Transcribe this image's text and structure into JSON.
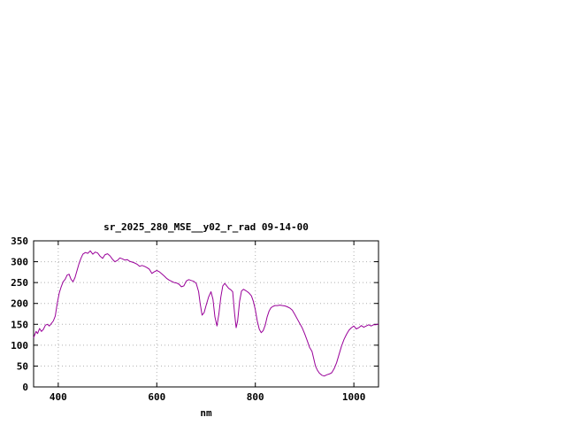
{
  "page": {
    "background": "#ffffff"
  },
  "chart_data": {
    "type": "line",
    "title": "sr_2025_280_MSE__y02_r_rad 09-14-00",
    "xlabel": "nm",
    "ylabel": "",
    "xlim": [
      350,
      1050
    ],
    "ylim": [
      0,
      350
    ],
    "x_ticks": [
      400,
      600,
      800,
      1000
    ],
    "y_ticks": [
      0,
      50,
      100,
      150,
      200,
      250,
      300,
      350
    ],
    "grid": true,
    "legend": "none",
    "line_color": "#990099",
    "grid_color": "#b0b0b0",
    "series": [
      {
        "name": "sr_2025_280_MSE__y02_r_rad",
        "points": [
          [
            350,
            118
          ],
          [
            355,
            133
          ],
          [
            358,
            128
          ],
          [
            362,
            140
          ],
          [
            366,
            133
          ],
          [
            370,
            138
          ],
          [
            374,
            148
          ],
          [
            378,
            150
          ],
          [
            382,
            146
          ],
          [
            386,
            152
          ],
          [
            390,
            158
          ],
          [
            394,
            170
          ],
          [
            398,
            200
          ],
          [
            402,
            225
          ],
          [
            406,
            240
          ],
          [
            410,
            252
          ],
          [
            414,
            258
          ],
          [
            418,
            268
          ],
          [
            422,
            270
          ],
          [
            426,
            258
          ],
          [
            430,
            252
          ],
          [
            434,
            262
          ],
          [
            438,
            278
          ],
          [
            442,
            295
          ],
          [
            446,
            308
          ],
          [
            450,
            318
          ],
          [
            455,
            322
          ],
          [
            460,
            320
          ],
          [
            465,
            326
          ],
          [
            470,
            318
          ],
          [
            475,
            323
          ],
          [
            480,
            321
          ],
          [
            485,
            313
          ],
          [
            490,
            308
          ],
          [
            495,
            317
          ],
          [
            500,
            319
          ],
          [
            505,
            314
          ],
          [
            510,
            306
          ],
          [
            515,
            300
          ],
          [
            520,
            303
          ],
          [
            525,
            309
          ],
          [
            530,
            307
          ],
          [
            535,
            304
          ],
          [
            540,
            305
          ],
          [
            545,
            301
          ],
          [
            550,
            299
          ],
          [
            555,
            297
          ],
          [
            560,
            294
          ],
          [
            565,
            289
          ],
          [
            570,
            291
          ],
          [
            575,
            289
          ],
          [
            580,
            286
          ],
          [
            585,
            282
          ],
          [
            590,
            272
          ],
          [
            595,
            276
          ],
          [
            600,
            279
          ],
          [
            605,
            276
          ],
          [
            610,
            271
          ],
          [
            615,
            266
          ],
          [
            620,
            260
          ],
          [
            625,
            256
          ],
          [
            630,
            253
          ],
          [
            635,
            250
          ],
          [
            640,
            249
          ],
          [
            645,
            246
          ],
          [
            650,
            240
          ],
          [
            655,
            242
          ],
          [
            660,
            254
          ],
          [
            665,
            257
          ],
          [
            670,
            255
          ],
          [
            675,
            253
          ],
          [
            680,
            248
          ],
          [
            685,
            228
          ],
          [
            688,
            200
          ],
          [
            692,
            172
          ],
          [
            696,
            178
          ],
          [
            700,
            195
          ],
          [
            705,
            215
          ],
          [
            710,
            228
          ],
          [
            714,
            210
          ],
          [
            718,
            168
          ],
          [
            722,
            146
          ],
          [
            726,
            175
          ],
          [
            730,
            215
          ],
          [
            734,
            242
          ],
          [
            738,
            248
          ],
          [
            742,
            242
          ],
          [
            746,
            236
          ],
          [
            750,
            233
          ],
          [
            754,
            228
          ],
          [
            758,
            175
          ],
          [
            761,
            142
          ],
          [
            764,
            158
          ],
          [
            768,
            205
          ],
          [
            772,
            230
          ],
          [
            776,
            234
          ],
          [
            780,
            231
          ],
          [
            784,
            228
          ],
          [
            788,
            224
          ],
          [
            792,
            218
          ],
          [
            796,
            205
          ],
          [
            800,
            185
          ],
          [
            804,
            158
          ],
          [
            808,
            138
          ],
          [
            812,
            130
          ],
          [
            816,
            135
          ],
          [
            820,
            148
          ],
          [
            824,
            168
          ],
          [
            828,
            182
          ],
          [
            832,
            190
          ],
          [
            836,
            193
          ],
          [
            840,
            195
          ],
          [
            845,
            195
          ],
          [
            850,
            196
          ],
          [
            855,
            195
          ],
          [
            860,
            194
          ],
          [
            865,
            192
          ],
          [
            870,
            189
          ],
          [
            875,
            184
          ],
          [
            880,
            174
          ],
          [
            885,
            163
          ],
          [
            890,
            152
          ],
          [
            895,
            142
          ],
          [
            900,
            128
          ],
          [
            905,
            112
          ],
          [
            910,
            95
          ],
          [
            915,
            85
          ],
          [
            918,
            70
          ],
          [
            922,
            50
          ],
          [
            926,
            40
          ],
          [
            930,
            33
          ],
          [
            935,
            28
          ],
          [
            940,
            26
          ],
          [
            945,
            29
          ],
          [
            950,
            31
          ],
          [
            955,
            34
          ],
          [
            960,
            44
          ],
          [
            965,
            58
          ],
          [
            970,
            78
          ],
          [
            975,
            98
          ],
          [
            980,
            114
          ],
          [
            985,
            126
          ],
          [
            990,
            136
          ],
          [
            995,
            142
          ],
          [
            1000,
            146
          ],
          [
            1005,
            139
          ],
          [
            1010,
            142
          ],
          [
            1015,
            147
          ],
          [
            1020,
            143
          ],
          [
            1025,
            146
          ],
          [
            1030,
            149
          ],
          [
            1035,
            146
          ],
          [
            1040,
            149
          ],
          [
            1045,
            149
          ],
          [
            1050,
            151
          ]
        ]
      }
    ]
  }
}
